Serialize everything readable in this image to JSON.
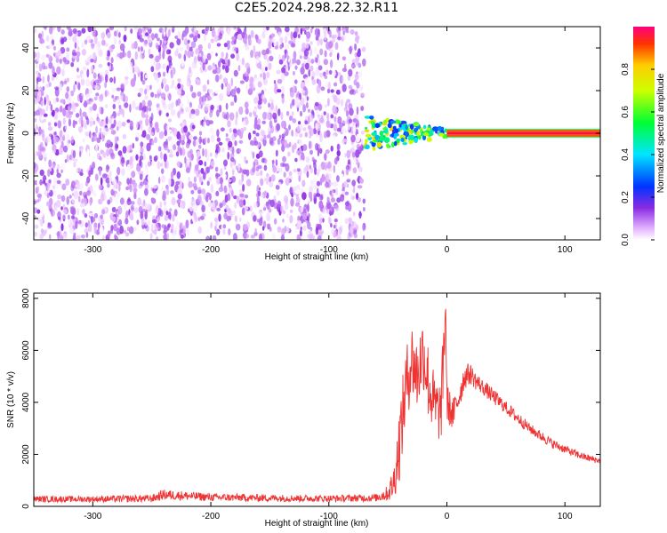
{
  "title": "C2E5.2024.298.22.32.R11",
  "colorbar": {
    "label": "Normalized spectral amplitude",
    "ticks": [
      "0.0",
      "0.2",
      "0.4",
      "0.6",
      "0.8"
    ],
    "tick_values": [
      0.0,
      0.2,
      0.4,
      0.6,
      0.8
    ],
    "range": [
      0,
      1
    ]
  },
  "chart_data": [
    {
      "type": "heatmap",
      "xlabel": "Height of straight line (km)",
      "ylabel": "Frequency (Hz)",
      "xlim": [
        -350,
        130
      ],
      "ylim": [
        -50,
        50
      ],
      "x_ticks": [
        -300,
        -200,
        -100,
        0,
        100
      ],
      "y_ticks": [
        -40,
        -20,
        0,
        20,
        40
      ],
      "regions": [
        {
          "x": [
            -350,
            -70
          ],
          "y": [
            -50,
            50
          ],
          "amplitude": [
            0.0,
            0.15
          ],
          "description": "noise"
        },
        {
          "x": [
            -70,
            0
          ],
          "y": [
            -8,
            6
          ],
          "amplitude": [
            0.2,
            0.8
          ]
        },
        {
          "x": [
            0,
            130
          ],
          "y": [
            -2,
            2
          ],
          "amplitude": [
            0.8,
            1.0
          ]
        }
      ]
    },
    {
      "type": "line",
      "xlabel": "Height of straight line (km)",
      "ylabel": "SNR (10 * v/v)",
      "xlim": [
        -350,
        130
      ],
      "ylim": [
        0,
        8200
      ],
      "x_ticks": [
        -300,
        -200,
        -100,
        0,
        100
      ],
      "y_ticks": [
        0,
        2000,
        4000,
        6000,
        8000
      ],
      "grid": false,
      "series": [
        {
          "color": "#ee3333",
          "x": [
            -350,
            -300,
            -250,
            -240,
            -200,
            -150,
            -100,
            -60,
            -50,
            -45,
            -40,
            -35,
            -30,
            -25,
            -20,
            -15,
            -10,
            -5,
            -3,
            -1,
            0,
            5,
            10,
            15,
            20,
            25,
            30,
            40,
            50,
            60,
            70,
            80,
            90,
            100,
            110,
            120,
            130
          ],
          "values": [
            280,
            280,
            300,
            450,
            350,
            320,
            300,
            330,
            500,
            900,
            2500,
            4500,
            5700,
            5000,
            6000,
            4600,
            3800,
            3600,
            5500,
            7800,
            4000,
            3500,
            4200,
            5000,
            5100,
            4800,
            4600,
            4200,
            3800,
            3400,
            3000,
            2700,
            2400,
            2200,
            2000,
            1850,
            1750
          ],
          "noise": [
            120,
            120,
            150,
            200,
            150,
            140,
            130,
            150,
            300,
            700,
            1500,
            1500,
            1500,
            1500,
            1500,
            1500,
            1200,
            1200,
            1500,
            800,
            800,
            600,
            600,
            500,
            400,
            350,
            300,
            300,
            250,
            250,
            200,
            200,
            180,
            160,
            150,
            140,
            120
          ]
        }
      ]
    }
  ]
}
